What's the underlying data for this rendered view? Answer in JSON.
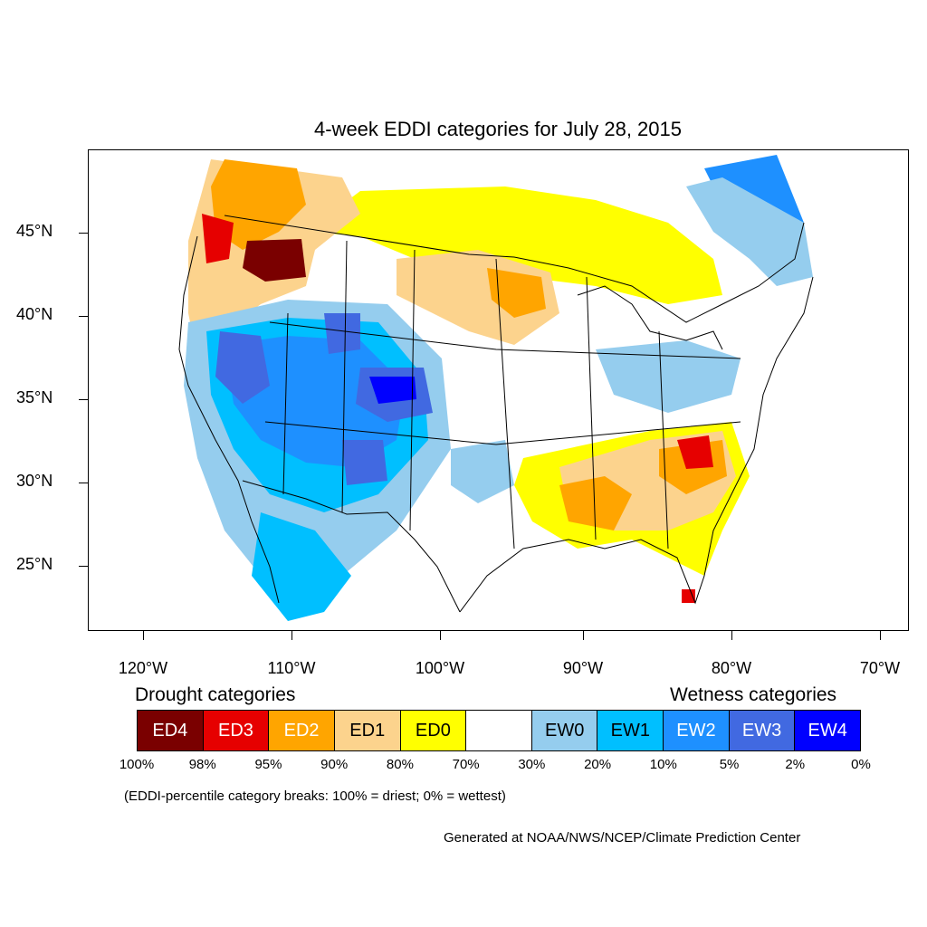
{
  "title": "4-week EDDI categories for July 28, 2015",
  "lat_labels": [
    "45°N",
    "40°N",
    "35°N",
    "30°N",
    "25°N"
  ],
  "lon_labels": [
    "120°W",
    "110°W",
    "100°W",
    "90°W",
    "80°W",
    "70°W"
  ],
  "drought_heading": "Drought categories",
  "wetness_heading": "Wetness categories",
  "categories": [
    {
      "label": "ED4",
      "color": "#7a0000",
      "text_color": "#ffffff"
    },
    {
      "label": "ED3",
      "color": "#e60000",
      "text_color": "#ffffff"
    },
    {
      "label": "ED2",
      "color": "#ffa500",
      "text_color": "#ffffff"
    },
    {
      "label": "ED1",
      "color": "#fcd38d",
      "text_color": "#000000"
    },
    {
      "label": "ED0",
      "color": "#ffff00",
      "text_color": "#000000"
    },
    {
      "label": "",
      "color": "#ffffff",
      "text_color": "#000000"
    },
    {
      "label": "EW0",
      "color": "#95cdee",
      "text_color": "#000000"
    },
    {
      "label": "EW1",
      "color": "#00bfff",
      "text_color": "#000000"
    },
    {
      "label": "EW2",
      "color": "#1e90ff",
      "text_color": "#ffffff"
    },
    {
      "label": "EW3",
      "color": "#4169e1",
      "text_color": "#ffffff"
    },
    {
      "label": "EW4",
      "color": "#0000ff",
      "text_color": "#ffffff"
    }
  ],
  "percent_breaks": [
    "100%",
    "98%",
    "95%",
    "90%",
    "80%",
    "70%",
    "30%",
    "20%",
    "10%",
    "5%",
    "2%",
    "0%"
  ],
  "note": "(EDDI-percentile category breaks: 100% = driest; 0% = wettest)",
  "credit": "Generated at NOAA/NWS/NCEP/Climate Prediction Center"
}
